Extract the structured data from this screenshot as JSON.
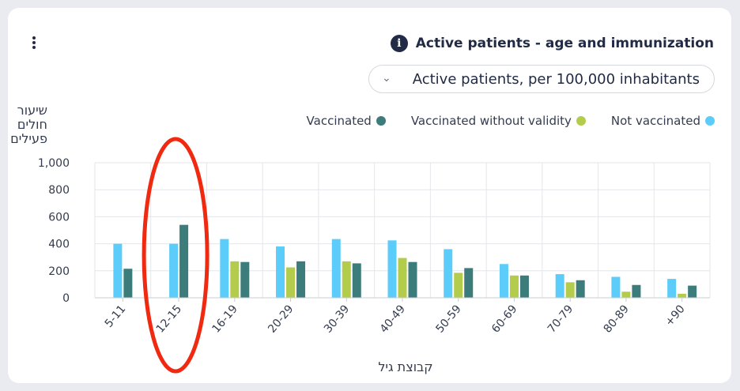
{
  "header": {
    "title": "Active patients - age and immunization",
    "info_icon": "info-icon",
    "menu_icon": "kebab-menu-icon"
  },
  "dropdown": {
    "selected": "Active patients, per 100,000 inhabitants",
    "icon": "chevron-down-icon"
  },
  "legend": [
    {
      "label": "Not vaccinated",
      "color": "#5ccdfa"
    },
    {
      "label": "Vaccinated without validity",
      "color": "#b3cc4c"
    },
    {
      "label": "Vaccinated",
      "color": "#3c7d7b"
    }
  ],
  "highlight": {
    "category": "12-15",
    "color": "#f02a10"
  },
  "chart_data": {
    "type": "bar",
    "ylabel": "שיעור חולים פעילים",
    "ylabel_lines": [
      "שיעור",
      "חולים",
      "פעילים"
    ],
    "xlabel": "קבוצת גיל",
    "categories": [
      "5-11",
      "12-15",
      "16-19",
      "20-29",
      "30-39",
      "40-49",
      "50-59",
      "60-69",
      "70-79",
      "80-89",
      "+90"
    ],
    "ylim": [
      0,
      1000
    ],
    "yticks": [
      0,
      200,
      400,
      600,
      800,
      1000
    ],
    "ytick_labels": [
      "0",
      "200",
      "400",
      "600",
      "800",
      "1,000"
    ],
    "grid": true,
    "series": [
      {
        "name": "Not vaccinated",
        "color": "#5ccdfa",
        "values": [
          400,
          400,
          435,
          380,
          435,
          425,
          360,
          250,
          175,
          155,
          140
        ]
      },
      {
        "name": "Vaccinated without validity",
        "color": "#b3cc4c",
        "values": [
          null,
          null,
          270,
          225,
          270,
          295,
          185,
          165,
          115,
          45,
          30
        ]
      },
      {
        "name": "Vaccinated",
        "color": "#3c7d7b",
        "values": [
          215,
          540,
          265,
          270,
          255,
          265,
          220,
          165,
          130,
          95,
          90
        ]
      }
    ]
  }
}
